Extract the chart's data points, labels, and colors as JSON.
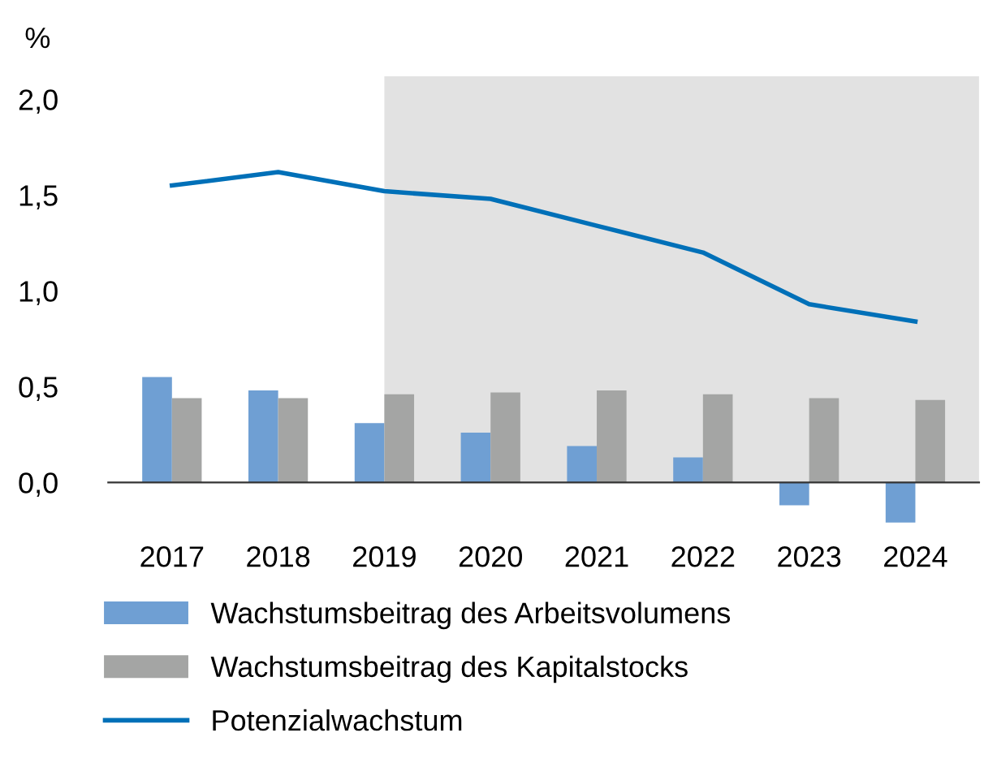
{
  "chart_data": {
    "type": "bar",
    "ylabel": "%",
    "categories": [
      "2017",
      "2018",
      "2019",
      "2020",
      "2021",
      "2022",
      "2023",
      "2024"
    ],
    "series": [
      {
        "name": "Wachstumsbeitrag des Arbeitsvolumens",
        "color": "#6f9fd3",
        "values": [
          0.55,
          0.48,
          0.31,
          0.26,
          0.19,
          0.13,
          -0.12,
          -0.21
        ]
      },
      {
        "name": "Wachstumsbeitrag des Kapitalstocks",
        "color": "#a4a5a4",
        "values": [
          0.44,
          0.44,
          0.46,
          0.47,
          0.48,
          0.46,
          0.44,
          0.43
        ]
      },
      {
        "name": "Potenzialwachstum",
        "type": "line",
        "color": "#0070b8",
        "values": [
          1.55,
          1.62,
          1.52,
          1.48,
          1.34,
          1.2,
          0.93,
          0.84
        ]
      }
    ],
    "bands": [
      {
        "axis": "x",
        "from": "2019",
        "to": "2024",
        "color": "#e2e2e2"
      }
    ],
    "ylim": [
      -0.25,
      2.12
    ],
    "yticks": [
      {
        "value": 0,
        "label": "0,0"
      },
      {
        "value": 0.5,
        "label": "0,5"
      },
      {
        "value": 1,
        "label": "1,0"
      },
      {
        "value": 1.5,
        "label": "1,5"
      },
      {
        "value": 2,
        "label": "2,0"
      }
    ],
    "legend": "bottom",
    "marker": "none",
    "line_style": "solid"
  }
}
